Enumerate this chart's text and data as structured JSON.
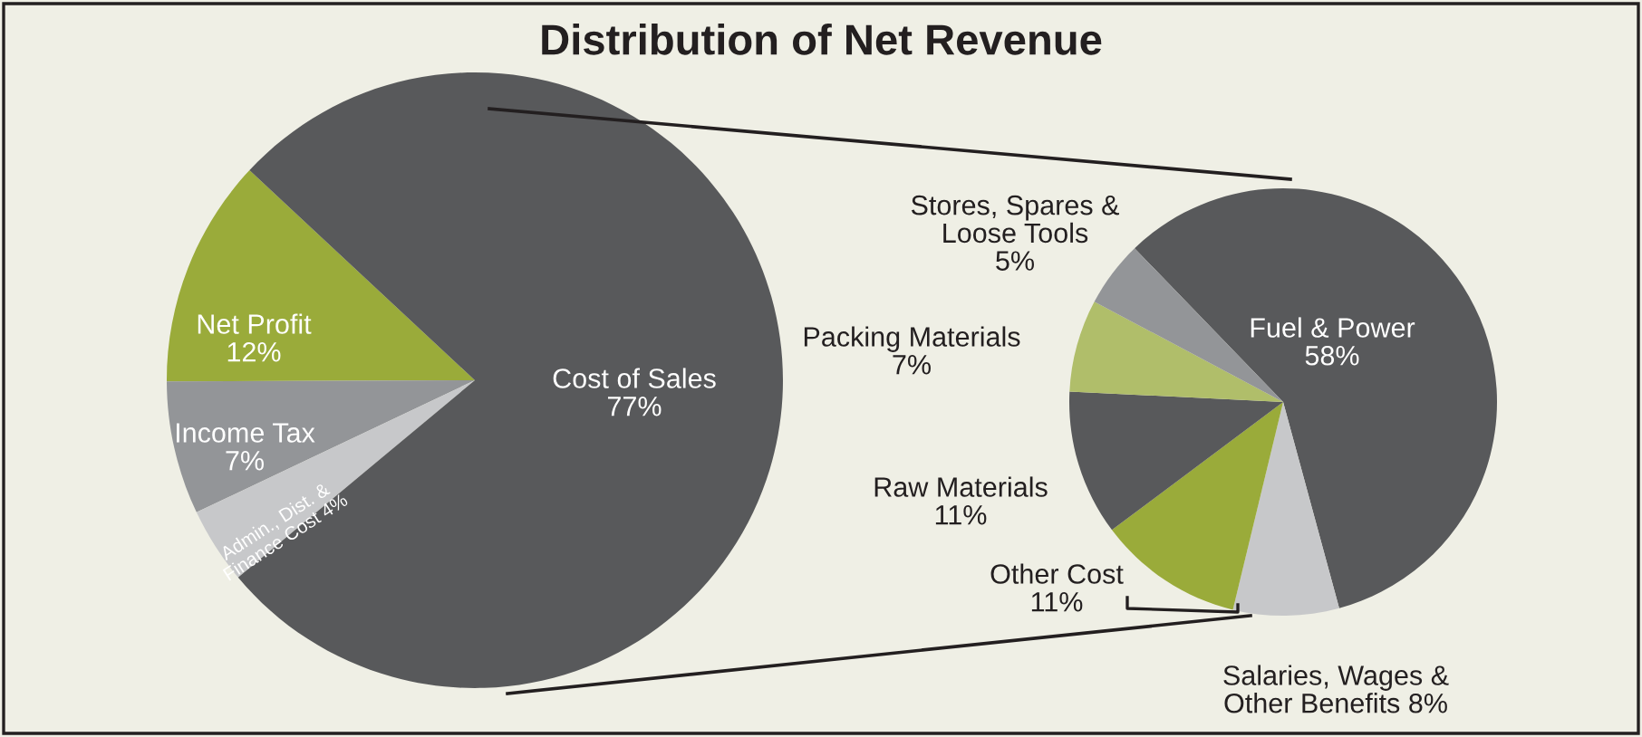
{
  "chart_data": [
    {
      "type": "pie",
      "title": "Distribution of Net Revenue",
      "categories": [
        "Net Profit",
        "Income Tax",
        "Admin., Dist. &\nFinance Cost",
        "Cost of Sales"
      ],
      "values": [
        12,
        7,
        4,
        77
      ],
      "value_labels": [
        "12%",
        "7%",
        "4%",
        "77%"
      ],
      "colors": [
        "#9aab3a",
        "#939598",
        "#c7c8ca",
        "#58595b"
      ]
    },
    {
      "type": "pie",
      "categories": [
        "Fuel & Power",
        "Salaries, Wages &\nOther Benefits",
        "Other Cost",
        "Raw Materials",
        "Packing Materials",
        "Stores, Spares &\nLoose Tools"
      ],
      "values": [
        58,
        8,
        11,
        11,
        7,
        5
      ],
      "value_labels": [
        "58%",
        "8%",
        "11%",
        "11%",
        "7%",
        "5%"
      ],
      "colors": [
        "#58595b",
        "#c7c8ca",
        "#9aab3a",
        "#58595b",
        "#b0be6a",
        "#939598"
      ]
    }
  ]
}
